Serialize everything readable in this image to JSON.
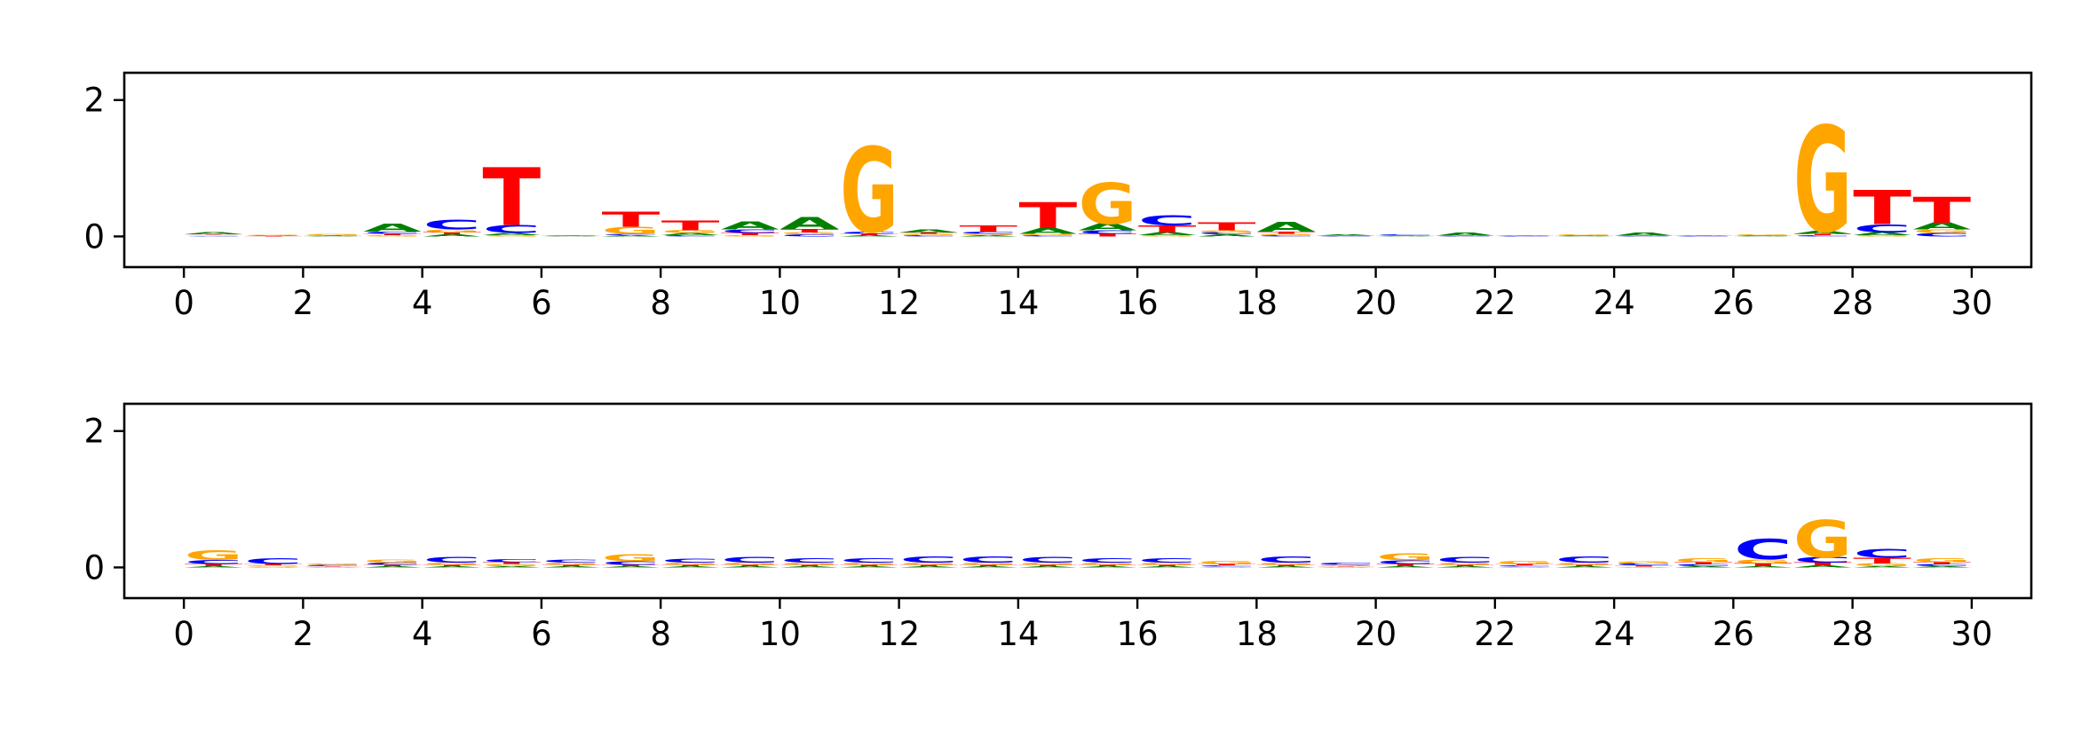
{
  "colors": {
    "A": "#008000",
    "C": "#0000ff",
    "G": "#ffa500",
    "T": "#ff0000",
    "axis": "#000000"
  },
  "chart_data": [
    {
      "type": "sequence-logo",
      "title": "",
      "xlabel": "",
      "ylabel": "",
      "xlim": [
        -1,
        31
      ],
      "ylim": [
        -0.45,
        2.4
      ],
      "xticks": [
        "0",
        "2",
        "4",
        "6",
        "8",
        "10",
        "12",
        "14",
        "16",
        "18",
        "20",
        "22",
        "24",
        "26",
        "28",
        "30"
      ],
      "yticks": [
        "0",
        "2"
      ],
      "positions": [
        {
          "x": 0,
          "A": 0.03,
          "C": 0.01,
          "G": 0.01,
          "T": 0.01
        },
        {
          "x": 1,
          "A": 0.01,
          "C": 0.01,
          "G": 0.01,
          "T": 0.005
        },
        {
          "x": 2,
          "A": 0.005,
          "C": 0.01,
          "G": 0.02,
          "T": 0.005
        },
        {
          "x": 3,
          "A": 0.12,
          "C": 0.03,
          "G": 0.02,
          "T": 0.02
        },
        {
          "x": 4,
          "A": 0.03,
          "C": 0.14,
          "G": 0.04,
          "T": 0.03
        },
        {
          "x": 5,
          "A": 0.03,
          "C": 0.12,
          "G": 0.02,
          "T": 0.85
        },
        {
          "x": 6,
          "A": 0.005,
          "C": 0.01,
          "G": 0.005,
          "T": 0.005
        },
        {
          "x": 7,
          "A": 0.02,
          "C": 0.02,
          "G": 0.1,
          "T": 0.22
        },
        {
          "x": 8,
          "A": 0.03,
          "C": 0.02,
          "G": 0.04,
          "T": 0.14
        },
        {
          "x": 9,
          "A": 0.12,
          "C": 0.05,
          "G": 0.02,
          "T": 0.03
        },
        {
          "x": 10,
          "A": 0.18,
          "C": 0.03,
          "G": 0.03,
          "T": 0.05
        },
        {
          "x": 11,
          "A": 0.02,
          "C": 0.03,
          "G": 1.25,
          "T": 0.02
        },
        {
          "x": 12,
          "A": 0.04,
          "C": 0.02,
          "G": 0.02,
          "T": 0.02
        },
        {
          "x": 13,
          "A": 0.02,
          "C": 0.03,
          "G": 0.02,
          "T": 0.09
        },
        {
          "x": 14,
          "A": 0.08,
          "C": 0.02,
          "G": 0.02,
          "T": 0.38
        },
        {
          "x": 15,
          "A": 0.1,
          "C": 0.05,
          "G": 0.6,
          "T": 0.04
        },
        {
          "x": 16,
          "A": 0.04,
          "C": 0.15,
          "G": 0.02,
          "T": 0.1
        },
        {
          "x": 17,
          "A": 0.03,
          "C": 0.03,
          "G": 0.03,
          "T": 0.12
        },
        {
          "x": 18,
          "A": 0.14,
          "C": 0.02,
          "G": 0.02,
          "T": 0.03
        },
        {
          "x": 19,
          "A": 0.02,
          "C": 0.005,
          "G": 0.005,
          "T": 0.005
        },
        {
          "x": 20,
          "A": 0.005,
          "C": 0.02,
          "G": 0.005,
          "T": 0.005
        },
        {
          "x": 21,
          "A": 0.04,
          "C": 0.005,
          "G": 0.005,
          "T": 0.005
        },
        {
          "x": 22,
          "A": 0.01,
          "C": 0.005,
          "G": 0.005,
          "T": 0.005
        },
        {
          "x": 23,
          "A": 0.005,
          "C": 0.005,
          "G": 0.02,
          "T": 0.005
        },
        {
          "x": 24,
          "A": 0.04,
          "C": 0.005,
          "G": 0.005,
          "T": 0.005
        },
        {
          "x": 25,
          "A": 0.01,
          "C": 0.005,
          "G": 0.005,
          "T": 0.005
        },
        {
          "x": 26,
          "A": 0.005,
          "C": 0.005,
          "G": 0.02,
          "T": 0.005
        },
        {
          "x": 27,
          "A": 0.04,
          "C": 0.02,
          "G": 1.55,
          "T": 0.02
        },
        {
          "x": 28,
          "A": 0.04,
          "C": 0.12,
          "G": 0.02,
          "T": 0.5
        },
        {
          "x": 29,
          "A": 0.1,
          "C": 0.05,
          "G": 0.05,
          "T": 0.38
        }
      ]
    },
    {
      "type": "sequence-logo",
      "title": "",
      "xlabel": "",
      "ylabel": "",
      "xlim": [
        -1,
        31
      ],
      "ylim": [
        -0.45,
        2.4
      ],
      "xticks": [
        "0",
        "2",
        "4",
        "6",
        "8",
        "10",
        "12",
        "14",
        "16",
        "18",
        "20",
        "22",
        "24",
        "26",
        "28",
        "30"
      ],
      "yticks": [
        "0",
        "2"
      ],
      "positions": [
        {
          "x": 0,
          "A": 0.02,
          "C": 0.06,
          "G": 0.14,
          "T": 0.03
        },
        {
          "x": 1,
          "A": 0.01,
          "C": 0.08,
          "G": 0.02,
          "T": 0.02
        },
        {
          "x": 2,
          "A": 0.01,
          "C": 0.02,
          "G": 0.02,
          "T": 0.01
        },
        {
          "x": 3,
          "A": 0.02,
          "C": 0.03,
          "G": 0.04,
          "T": 0.02
        },
        {
          "x": 4,
          "A": 0.02,
          "C": 0.08,
          "G": 0.03,
          "T": 0.02
        },
        {
          "x": 5,
          "A": 0.02,
          "C": 0.04,
          "G": 0.03,
          "T": 0.03
        },
        {
          "x": 6,
          "A": 0.02,
          "C": 0.04,
          "G": 0.03,
          "T": 0.02
        },
        {
          "x": 7,
          "A": 0.02,
          "C": 0.05,
          "G": 0.1,
          "T": 0.02
        },
        {
          "x": 8,
          "A": 0.02,
          "C": 0.06,
          "G": 0.03,
          "T": 0.02
        },
        {
          "x": 9,
          "A": 0.02,
          "C": 0.08,
          "G": 0.03,
          "T": 0.02
        },
        {
          "x": 10,
          "A": 0.02,
          "C": 0.07,
          "G": 0.03,
          "T": 0.02
        },
        {
          "x": 11,
          "A": 0.02,
          "C": 0.07,
          "G": 0.03,
          "T": 0.02
        },
        {
          "x": 12,
          "A": 0.02,
          "C": 0.09,
          "G": 0.03,
          "T": 0.02
        },
        {
          "x": 13,
          "A": 0.02,
          "C": 0.09,
          "G": 0.03,
          "T": 0.02
        },
        {
          "x": 14,
          "A": 0.02,
          "C": 0.08,
          "G": 0.03,
          "T": 0.02
        },
        {
          "x": 15,
          "A": 0.02,
          "C": 0.07,
          "G": 0.03,
          "T": 0.02
        },
        {
          "x": 16,
          "A": 0.02,
          "C": 0.07,
          "G": 0.03,
          "T": 0.02
        },
        {
          "x": 17,
          "A": 0.01,
          "C": 0.02,
          "G": 0.04,
          "T": 0.02
        },
        {
          "x": 18,
          "A": 0.02,
          "C": 0.09,
          "G": 0.03,
          "T": 0.02
        },
        {
          "x": 19,
          "A": 0.01,
          "C": 0.03,
          "G": 0.02,
          "T": 0.01
        },
        {
          "x": 20,
          "A": 0.02,
          "C": 0.05,
          "G": 0.1,
          "T": 0.03
        },
        {
          "x": 21,
          "A": 0.02,
          "C": 0.08,
          "G": 0.03,
          "T": 0.02
        },
        {
          "x": 22,
          "A": 0.01,
          "C": 0.02,
          "G": 0.04,
          "T": 0.02
        },
        {
          "x": 23,
          "A": 0.02,
          "C": 0.09,
          "G": 0.03,
          "T": 0.02
        },
        {
          "x": 24,
          "A": 0.01,
          "C": 0.03,
          "G": 0.03,
          "T": 0.02
        },
        {
          "x": 25,
          "A": 0.02,
          "C": 0.03,
          "G": 0.06,
          "T": 0.03
        },
        {
          "x": 26,
          "A": 0.02,
          "C": 0.3,
          "G": 0.06,
          "T": 0.04
        },
        {
          "x": 27,
          "A": 0.03,
          "C": 0.08,
          "G": 0.55,
          "T": 0.04
        },
        {
          "x": 28,
          "A": 0.02,
          "C": 0.13,
          "G": 0.04,
          "T": 0.08
        },
        {
          "x": 29,
          "A": 0.02,
          "C": 0.03,
          "G": 0.06,
          "T": 0.03
        }
      ]
    }
  ]
}
